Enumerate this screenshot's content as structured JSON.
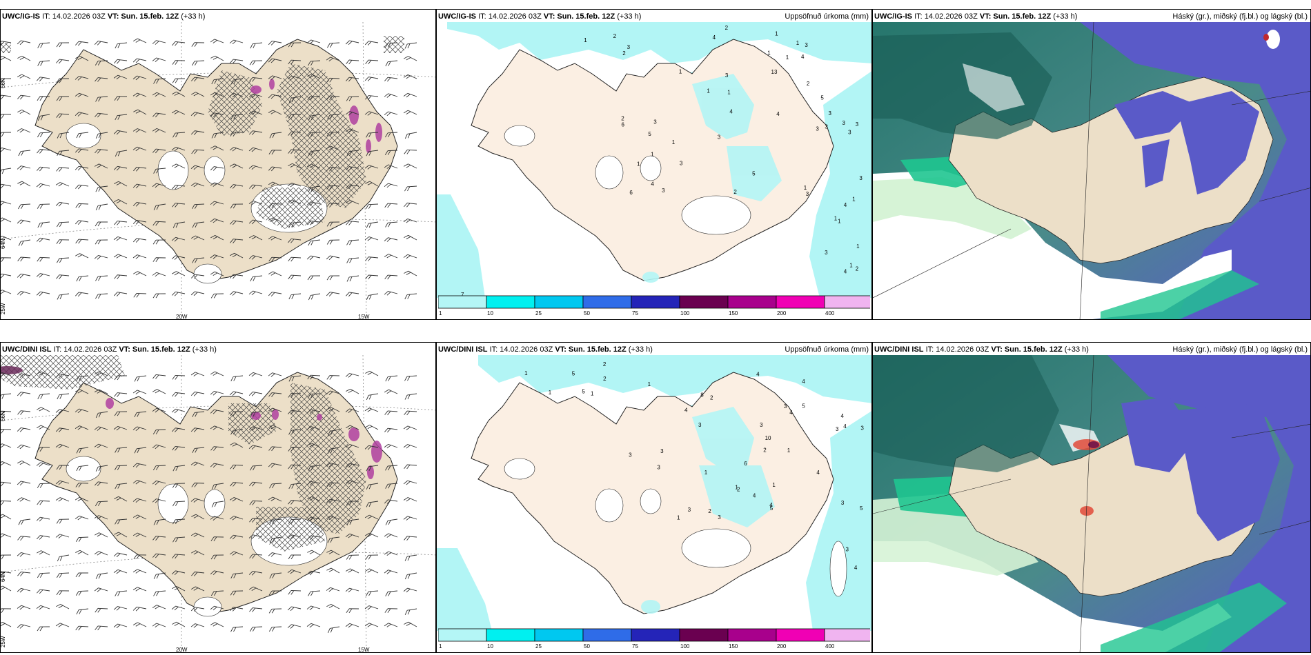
{
  "panels": [
    {
      "id": "p1",
      "model": "UWC/IG-IS",
      "it": "IT: 14.02.2026 03Z",
      "vt_label": "VT:",
      "vt": "Sun. 15.feb. 12Z",
      "lead": "(+33 h)",
      "right": ""
    },
    {
      "id": "p2",
      "model": "UWC/IG-IS",
      "it": "IT: 14.02.2026 03Z",
      "vt_label": "VT:",
      "vt": "Sun. 15.feb. 12Z",
      "lead": "(+33 h)",
      "right": "Uppsöfnuð úrkoma (mm)"
    },
    {
      "id": "p3",
      "model": "UWC/IG-IS",
      "it": "IT: 14.02.2026 03Z",
      "vt_label": "VT:",
      "vt": "Sun. 15.feb. 12Z",
      "lead": "(+33 h)",
      "right": "Háský (gr.), miðský (fj.bl.) og lágský (bl.)"
    },
    {
      "id": "p4",
      "model": "UWC/DINI ISL",
      "it": "IT: 14.02.2026 03Z",
      "vt_label": "VT:",
      "vt": "Sun. 15.feb. 12Z",
      "lead": "(+33 h)",
      "right": ""
    },
    {
      "id": "p5",
      "model": "UWC/DINI ISL",
      "it": "IT: 14.02.2026 03Z",
      "vt_label": "VT:",
      "vt": "Sun. 15.feb. 12Z",
      "lead": "(+33 h)",
      "right": "Uppsöfnuð úrkoma (mm)"
    },
    {
      "id": "p6",
      "model": "UWC/DINI ISL",
      "it": "IT: 14.02.2026 03Z",
      "vt_label": "VT:",
      "vt": "Sun. 15.feb. 12Z",
      "lead": "(+33 h)",
      "right": "Háský (gr.), miðský (fj.bl.) og lágský (bl.)"
    }
  ],
  "colorbar": {
    "ticks": [
      "1",
      "10",
      "25",
      "50",
      "75",
      "100",
      "150",
      "200",
      "400"
    ],
    "colors": [
      "#b4f6f6",
      "#00f0f0",
      "#00c8f0",
      "#2f6ce8",
      "#2424b8",
      "#6a0050",
      "#a8008c",
      "#f000b4",
      "#f0b4f0"
    ]
  },
  "axis_labels": {
    "lat66": "66N",
    "lat64": "64N",
    "lon25": "25W",
    "lon20": "20W",
    "lon15": "15W",
    "top7": "7"
  },
  "precip_numbers_top": [
    "2",
    "1",
    "4",
    "3",
    "3",
    "4",
    "2",
    "2",
    "1",
    "1",
    "1",
    "1",
    "4",
    "3",
    "1",
    "3",
    "1",
    "2",
    "1",
    "1",
    "1",
    "1",
    "4",
    "1",
    "4",
    "13",
    "6",
    "5",
    "2",
    "2",
    "3",
    "3",
    "5",
    "3",
    "3",
    "6",
    "3",
    "4",
    "3",
    "1",
    "4",
    "3",
    "1",
    "1",
    "1",
    "5",
    "3",
    "3",
    "3",
    "3",
    "2",
    "3",
    "1"
  ],
  "precip_numbers_bottom": [
    "2",
    "2",
    "5",
    "5",
    "4",
    "8",
    "4",
    "2",
    "1",
    "1",
    "1",
    "1",
    "1",
    "1",
    "2",
    "3",
    "3",
    "4",
    "1",
    "1",
    "4",
    "2",
    "1",
    "5",
    "6",
    "10",
    "3",
    "3",
    "3",
    "3",
    "4",
    "5",
    "3",
    "3",
    "4",
    "2",
    "4",
    "4",
    "5",
    "3",
    "3",
    "3",
    "3",
    "4",
    "4"
  ],
  "colors": {
    "land": "#ecdfc8",
    "light_cyan": "#b2f5f5",
    "cloud_teal": "#26766c",
    "cloud_green": "#1fc590",
    "cloud_mid": "#5a5ac8",
    "cloud_light": "#d6f3d6"
  }
}
